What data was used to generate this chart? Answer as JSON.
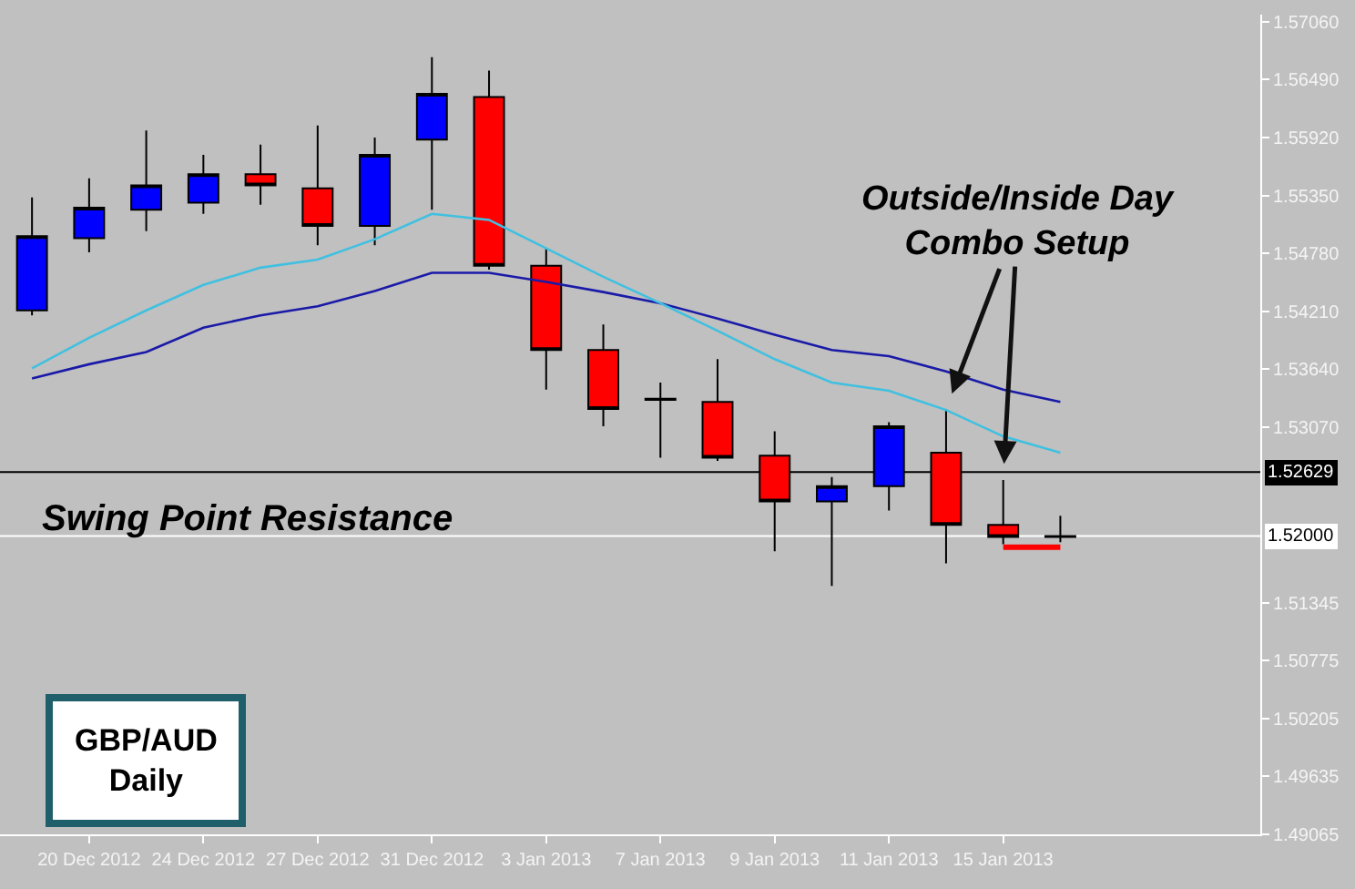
{
  "chart_data": {
    "type": "candlestick",
    "categories": [
      null,
      "20 Dec 2012",
      null,
      "24 Dec 2012",
      null,
      "27 Dec 2012",
      null,
      "31 Dec 2012",
      null,
      "3 Jan 2013",
      null,
      "7 Jan 2013",
      null,
      "9 Jan 2013",
      null,
      "11 Jan 2013",
      null,
      "15 Jan 2013",
      null
    ],
    "ohlc": [
      [
        1.5422,
        1.5533,
        1.5417,
        1.5495
      ],
      [
        1.5493,
        1.5552,
        1.5479,
        1.5523
      ],
      [
        1.5521,
        1.5599,
        1.55,
        1.5545
      ],
      [
        1.5528,
        1.5575,
        1.5517,
        1.5556
      ],
      [
        1.5556,
        1.5585,
        1.5526,
        1.5545
      ],
      [
        1.5542,
        1.5604,
        1.5486,
        1.5505
      ],
      [
        1.5505,
        1.5592,
        1.5486,
        1.5575
      ],
      [
        1.559,
        1.5671,
        1.5521,
        1.5635
      ],
      [
        1.5632,
        1.5658,
        1.5462,
        1.5466
      ],
      [
        1.5466,
        1.5483,
        1.5344,
        1.5383
      ],
      [
        1.5383,
        1.5408,
        1.5308,
        1.5325
      ],
      [
        1.5335,
        1.5351,
        1.5277,
        1.5334
      ],
      [
        1.5332,
        1.5374,
        1.5274,
        1.5277
      ],
      [
        1.5279,
        1.5303,
        1.5185,
        1.5234
      ],
      [
        1.5234,
        1.5258,
        1.5151,
        1.5249
      ],
      [
        1.5249,
        1.5312,
        1.5225,
        1.5308
      ],
      [
        1.5282,
        1.5325,
        1.5173,
        1.5211
      ],
      [
        1.5211,
        1.5255,
        1.5192,
        1.5199
      ],
      [
        1.52,
        1.522,
        1.5194,
        1.5199
      ]
    ],
    "colors": [
      "#0000ff",
      "#0000ff",
      "#0000ff",
      "#0000ff",
      "#ff0000",
      "#ff0000",
      "#0000ff",
      "#0000ff",
      "#ff0000",
      "#ff0000",
      "#ff0000",
      "#000000",
      "#ff0000",
      "#ff0000",
      "#0000ff",
      "#0000ff",
      "#ff0000",
      "#ff0000",
      "#000000"
    ],
    "series": [
      {
        "type": "line",
        "color": "#1a1aa8",
        "values": [
          1.5355,
          1.5369,
          1.5381,
          1.5405,
          1.5417,
          1.5426,
          1.5441,
          1.5459,
          1.5459,
          1.545,
          1.544,
          1.5429,
          1.5414,
          1.5398,
          1.5383,
          1.5377,
          1.5362,
          1.5344,
          1.5332
        ]
      },
      {
        "type": "line",
        "color": "#40c0e0",
        "values": [
          1.5365,
          1.5395,
          1.5422,
          1.5447,
          1.5464,
          1.5472,
          1.5492,
          1.5517,
          1.5511,
          1.5483,
          1.5455,
          1.5429,
          1.5402,
          1.5374,
          1.5351,
          1.5343,
          1.5324,
          1.5298,
          1.5282
        ]
      },
      {
        "type": "line",
        "color": "#ff0000",
        "values": [
          null,
          null,
          null,
          null,
          null,
          null,
          null,
          null,
          null,
          null,
          null,
          null,
          null,
          null,
          null,
          null,
          null,
          1.5189,
          1.5189
        ]
      }
    ],
    "ylim": [
      1.49065,
      1.5713
    ],
    "yticks": [
      {
        "value": 1.5706,
        "label": "1.57060"
      },
      {
        "value": 1.5649,
        "label": "1.56490"
      },
      {
        "value": 1.5592,
        "label": "1.55920"
      },
      {
        "value": 1.5535,
        "label": "1.55350"
      },
      {
        "value": 1.5478,
        "label": "1.54780"
      },
      {
        "value": 1.5421,
        "label": "1.54210"
      },
      {
        "value": 1.5364,
        "label": "1.53640"
      },
      {
        "value": 1.5307,
        "label": "1.53070"
      },
      {
        "value": 1.51345,
        "label": "1.51345"
      },
      {
        "value": 1.50775,
        "label": "1.50775"
      },
      {
        "value": 1.50205,
        "label": "1.50205"
      },
      {
        "value": 1.49635,
        "label": "1.49635"
      },
      {
        "value": 1.49065,
        "label": "1.49065"
      }
    ],
    "ref_lines": [
      {
        "axis": "y",
        "value": 1.52629,
        "label": "1.52629",
        "color": "#000000"
      },
      {
        "axis": "y",
        "value": 1.52,
        "label": "1.52000",
        "color": "#ffffff"
      }
    ],
    "annotations": [
      "GBP/AUD\nDaily",
      "Swing Point Resistance",
      {
        "text": "Outside/Inside Day\nCombo Setup",
        "x": "15 Jan 2013",
        "y": 1.5255
      }
    ],
    "grid": false
  }
}
